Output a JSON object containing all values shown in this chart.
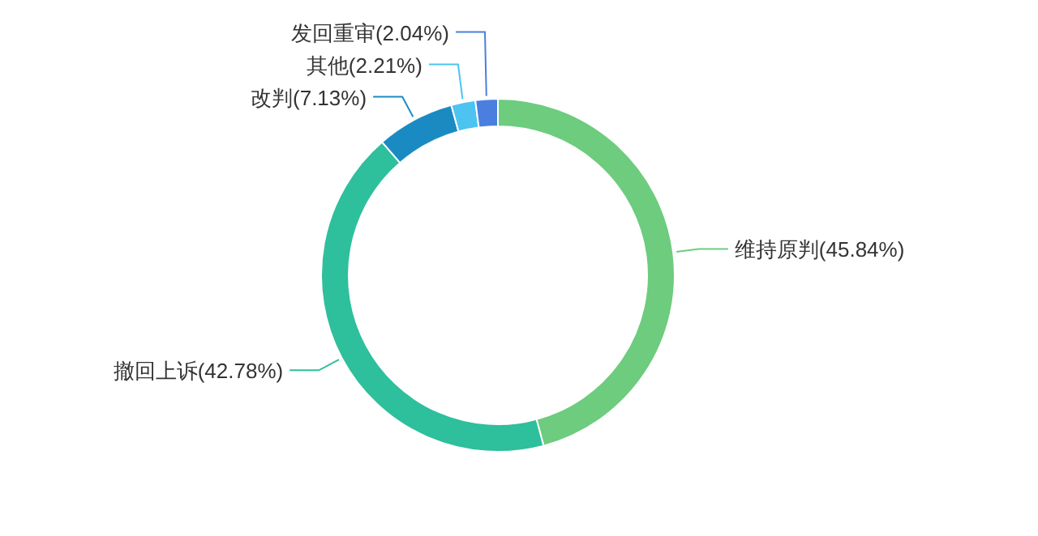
{
  "chart_data": {
    "type": "donut",
    "categories": [
      "维持原判",
      "撤回上诉",
      "改判",
      "其他",
      "发回重审"
    ],
    "values": [
      45.84,
      42.78,
      7.13,
      2.21,
      2.04
    ],
    "value_labels": [
      "(45.84%)",
      "(42.78%)",
      "(7.13%)",
      "(2.21%)",
      "(2.04%)"
    ],
    "colors": [
      "#6dcc7e",
      "#2ebf9c",
      "#1a8bc2",
      "#4cc4ef",
      "#4a7fe0"
    ]
  }
}
